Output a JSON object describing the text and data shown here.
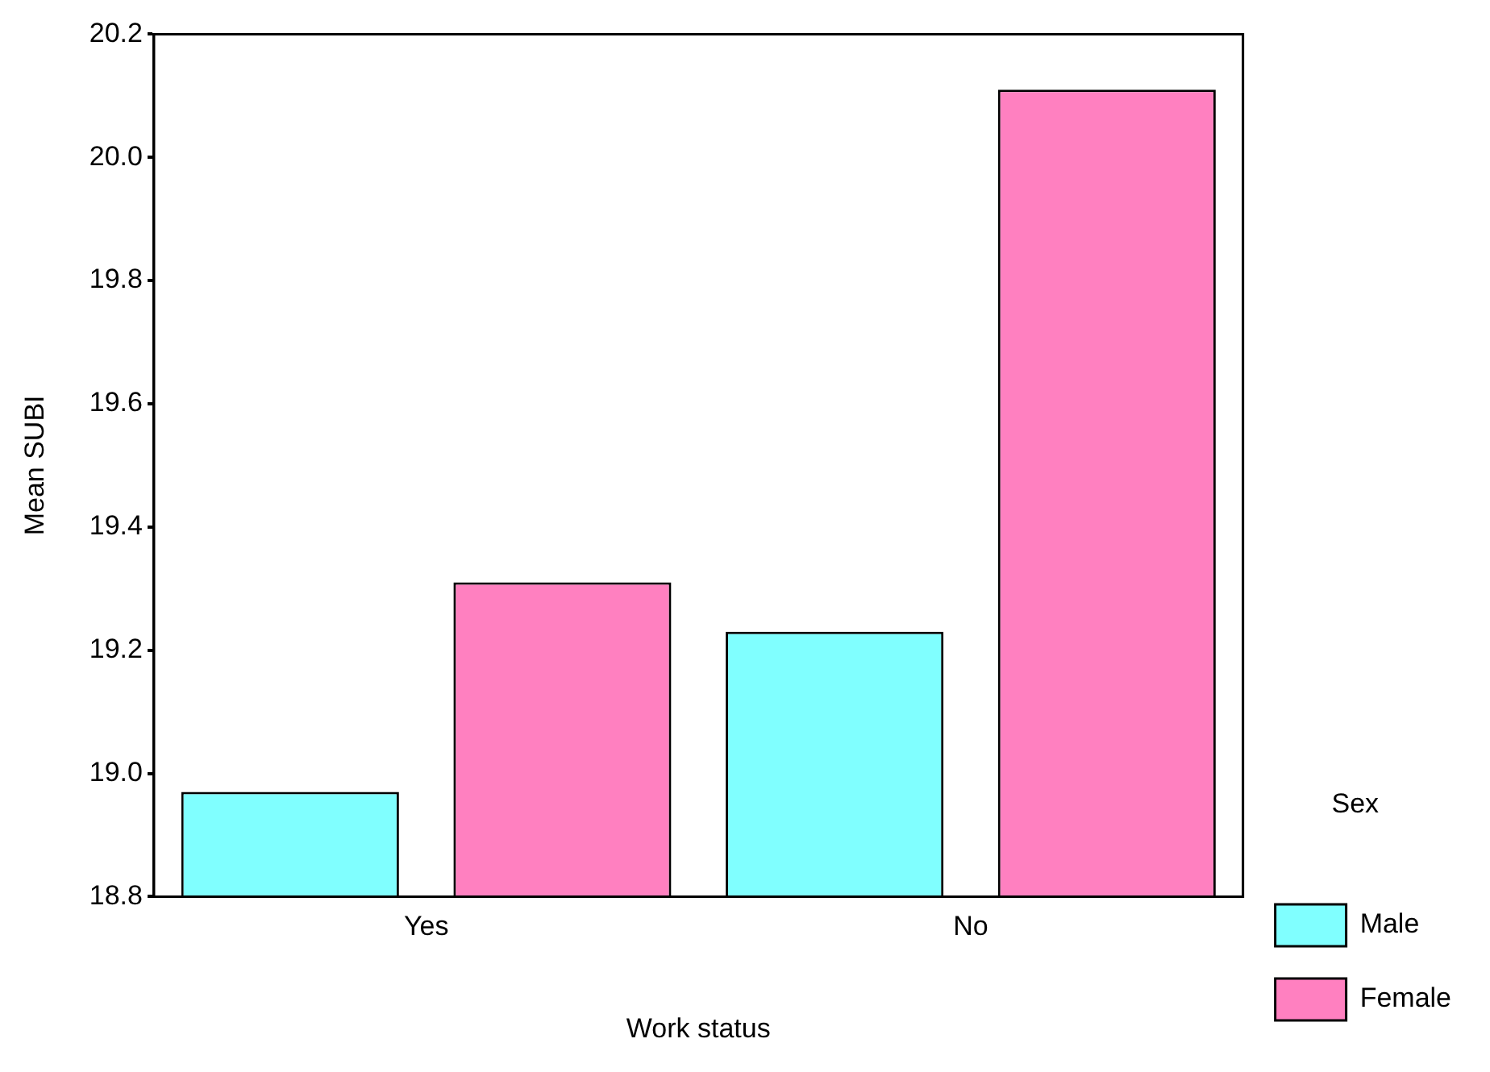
{
  "chart_data": {
    "type": "bar",
    "xlabel": "Work status",
    "ylabel": "Mean SUBI",
    "legend_title": "Sex",
    "categories": [
      "Yes",
      "No"
    ],
    "series": [
      {
        "name": "Male",
        "color": "#80ffff",
        "values": [
          18.97,
          19.23
        ]
      },
      {
        "name": "Female",
        "color": "#ff80c0",
        "values": [
          19.31,
          20.11
        ]
      }
    ],
    "ylim": [
      18.8,
      20.2
    ],
    "yticks": [
      {
        "value": 18.8,
        "label": "18.8"
      },
      {
        "value": 19.0,
        "label": "19.0"
      },
      {
        "value": 19.2,
        "label": "19.2"
      },
      {
        "value": 19.4,
        "label": "19.4"
      },
      {
        "value": 19.6,
        "label": "19.6"
      },
      {
        "value": 19.8,
        "label": "19.8"
      },
      {
        "value": 20.0,
        "label": "20.0"
      },
      {
        "value": 20.2,
        "label": "20.2"
      }
    ],
    "grid": false,
    "legend": "bottom right"
  }
}
